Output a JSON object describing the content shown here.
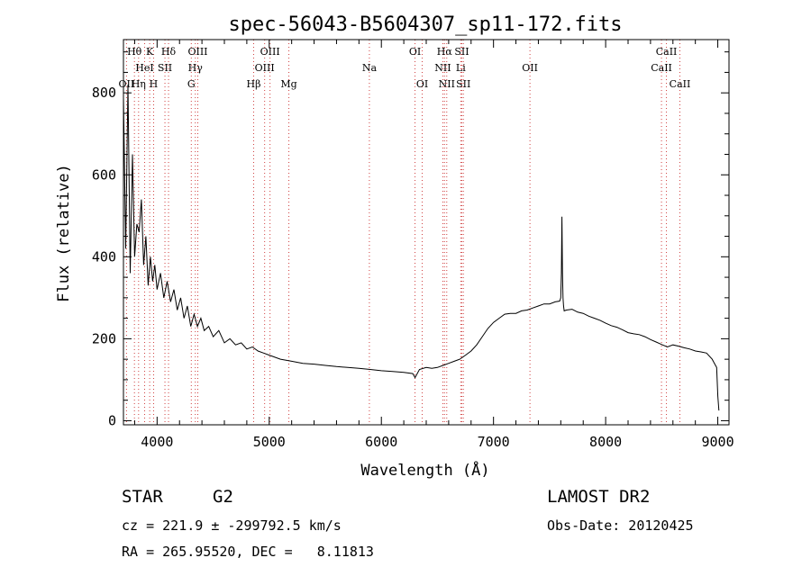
{
  "chart_data": {
    "type": "line",
    "title": "spec-56043-B5604307_sp11-172.fits",
    "xlabel": "Wavelength (Å)",
    "ylabel": "Flux (relative)",
    "xlim": [
      3700,
      9100
    ],
    "ylim": [
      -10,
      930
    ],
    "x_ticks": [
      4000,
      5000,
      6000,
      7000,
      8000,
      9000
    ],
    "y_ticks": [
      0,
      200,
      400,
      600,
      800
    ],
    "grid": false,
    "legend": "none",
    "series": [
      {
        "line_color": "#000000",
        "x": [
          3700,
          3720,
          3740,
          3760,
          3780,
          3800,
          3820,
          3840,
          3860,
          3880,
          3900,
          3920,
          3940,
          3960,
          3980,
          4000,
          4030,
          4060,
          4090,
          4120,
          4150,
          4180,
          4210,
          4240,
          4270,
          4300,
          4330,
          4360,
          4390,
          4420,
          4460,
          4500,
          4550,
          4600,
          4650,
          4700,
          4750,
          4800,
          4850,
          4900,
          4950,
          5000,
          5100,
          5200,
          5300,
          5400,
          5500,
          5600,
          5700,
          5800,
          5900,
          6000,
          6100,
          6200,
          6280,
          6300,
          6340,
          6400,
          6450,
          6500,
          6550,
          6600,
          6650,
          6700,
          6750,
          6800,
          6850,
          6900,
          6950,
          7000,
          7050,
          7100,
          7150,
          7200,
          7250,
          7300,
          7350,
          7400,
          7450,
          7500,
          7550,
          7590,
          7600,
          7605,
          7610,
          7615,
          7620,
          7625,
          7630,
          7650,
          7700,
          7750,
          7800,
          7850,
          7900,
          7950,
          8000,
          8050,
          8100,
          8150,
          8200,
          8250,
          8300,
          8350,
          8400,
          8450,
          8500,
          8550,
          8600,
          8650,
          8700,
          8750,
          8800,
          8850,
          8900,
          8950,
          8970,
          8990,
          9000,
          9010
        ],
        "y": [
          790,
          420,
          820,
          360,
          650,
          400,
          480,
          460,
          540,
          380,
          450,
          330,
          400,
          340,
          380,
          320,
          360,
          300,
          340,
          290,
          320,
          270,
          300,
          250,
          280,
          230,
          260,
          230,
          250,
          220,
          230,
          205,
          220,
          190,
          200,
          185,
          190,
          175,
          180,
          170,
          165,
          160,
          150,
          145,
          140,
          138,
          135,
          132,
          130,
          128,
          125,
          122,
          120,
          118,
          115,
          105,
          125,
          130,
          128,
          130,
          135,
          140,
          145,
          150,
          160,
          170,
          185,
          205,
          225,
          240,
          250,
          260,
          262,
          262,
          268,
          270,
          275,
          280,
          285,
          285,
          290,
          292,
          300,
          360,
          498,
          360,
          300,
          280,
          268,
          270,
          272,
          265,
          262,
          255,
          250,
          245,
          238,
          232,
          228,
          222,
          215,
          212,
          210,
          205,
          198,
          192,
          186,
          180,
          185,
          182,
          178,
          175,
          170,
          168,
          165,
          150,
          140,
          130,
          60,
          25
        ]
      }
    ],
    "lines": [
      {
        "name": "Hθ",
        "x": 3798,
        "row": 1
      },
      {
        "name": "K",
        "x": 3934,
        "row": 1
      },
      {
        "name": "Hδ",
        "x": 4102,
        "row": 1
      },
      {
        "name": "OIII",
        "x": 4363,
        "row": 1
      },
      {
        "name": "OIII",
        "x": 5007,
        "row": 1
      },
      {
        "name": "OI",
        "x": 6300,
        "row": 1
      },
      {
        "name": "Hα",
        "x": 6563,
        "row": 1
      },
      {
        "name": "SII",
        "x": 6717,
        "row": 1
      },
      {
        "name": "CaII",
        "x": 8542,
        "row": 1
      },
      {
        "name": "HeI",
        "x": 3889,
        "row": 2
      },
      {
        "name": "SII",
        "x": 4070,
        "row": 2
      },
      {
        "name": "Hγ",
        "x": 4341,
        "row": 2
      },
      {
        "name": "OIII",
        "x": 4959,
        "row": 2
      },
      {
        "name": "Na",
        "x": 5893,
        "row": 2
      },
      {
        "name": "NII",
        "x": 6548,
        "row": 2
      },
      {
        "name": "Li",
        "x": 6708,
        "row": 2
      },
      {
        "name": "OII",
        "x": 7325,
        "row": 2
      },
      {
        "name": "CaII",
        "x": 8498,
        "row": 2
      },
      {
        "name": "OII",
        "x": 3727,
        "row": 3
      },
      {
        "name": "Hη",
        "x": 3835,
        "row": 3
      },
      {
        "name": "H",
        "x": 3969,
        "row": 3
      },
      {
        "name": "G",
        "x": 4305,
        "row": 3
      },
      {
        "name": "Hβ",
        "x": 4861,
        "row": 3
      },
      {
        "name": "Mg",
        "x": 5175,
        "row": 3
      },
      {
        "name": "OI",
        "x": 6364,
        "row": 3
      },
      {
        "name": "NII",
        "x": 6583,
        "row": 3
      },
      {
        "name": "SII",
        "x": 6731,
        "row": 3
      },
      {
        "name": "CaII",
        "x": 8662,
        "row": 3
      }
    ]
  },
  "info": {
    "object_class": "STAR",
    "subclass": "G2",
    "survey": "LAMOST DR2",
    "redshift_line": "cz = 221.9 ± -299792.5 km/s",
    "obs_date": "Obs-Date: 20120425",
    "coords": "RA = 265.95520, DEC =   8.11813"
  }
}
